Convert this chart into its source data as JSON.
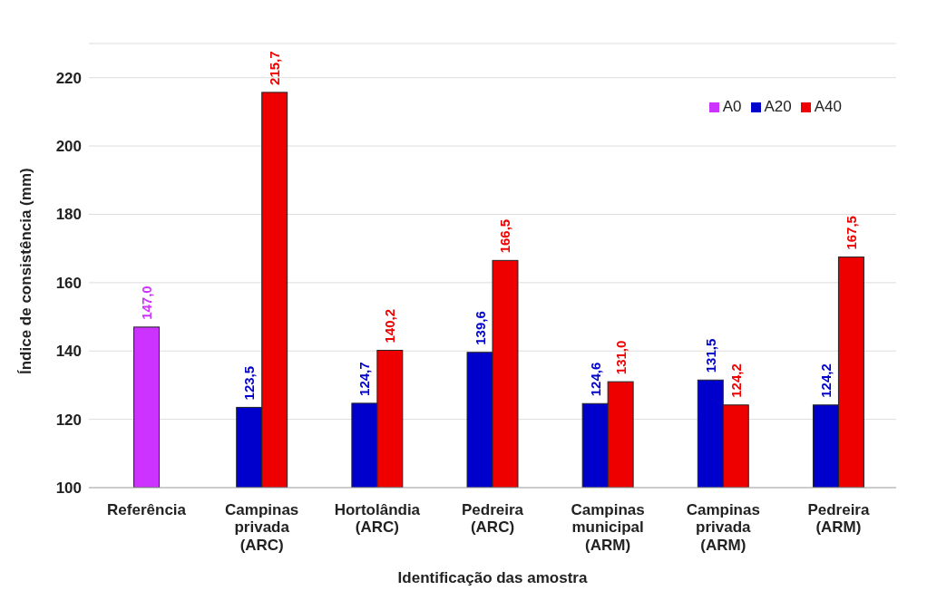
{
  "chart_data": {
    "type": "bar",
    "xlabel": "Identificação das amostra",
    "ylabel": "Índice de consistência (mm)",
    "categories": [
      "Referência",
      "Campinas privada (ARC)",
      "Hortolândia (ARC)",
      "Pedreira (ARC)",
      "Campinas municipal (ARM)",
      "Campinas privada (ARM)",
      "Pedreira (ARM)"
    ],
    "series": [
      {
        "name": "A0",
        "color": "#cc33ff",
        "values": [
          147.0,
          null,
          null,
          null,
          null,
          null,
          null
        ],
        "value_labels": [
          "147,0",
          null,
          null,
          null,
          null,
          null,
          null
        ]
      },
      {
        "name": "A20",
        "color": "#0000cc",
        "values": [
          null,
          123.5,
          124.7,
          139.6,
          124.6,
          131.5,
          124.2
        ],
        "value_labels": [
          null,
          "123,5",
          "124,7",
          "139,6",
          "124,6",
          "131,5",
          "124,2"
        ]
      },
      {
        "name": "A40",
        "color": "#ee0000",
        "values": [
          null,
          215.7,
          140.2,
          166.5,
          131.0,
          124.2,
          167.5
        ],
        "value_labels": [
          null,
          "215,7",
          "140,2",
          "166,5",
          "131,0",
          "124,2",
          "167,5"
        ]
      }
    ],
    "ylim": [
      100,
      230
    ],
    "yticks": [
      100,
      120,
      140,
      160,
      180,
      200,
      220
    ],
    "grid": "y",
    "legend": "top right"
  }
}
